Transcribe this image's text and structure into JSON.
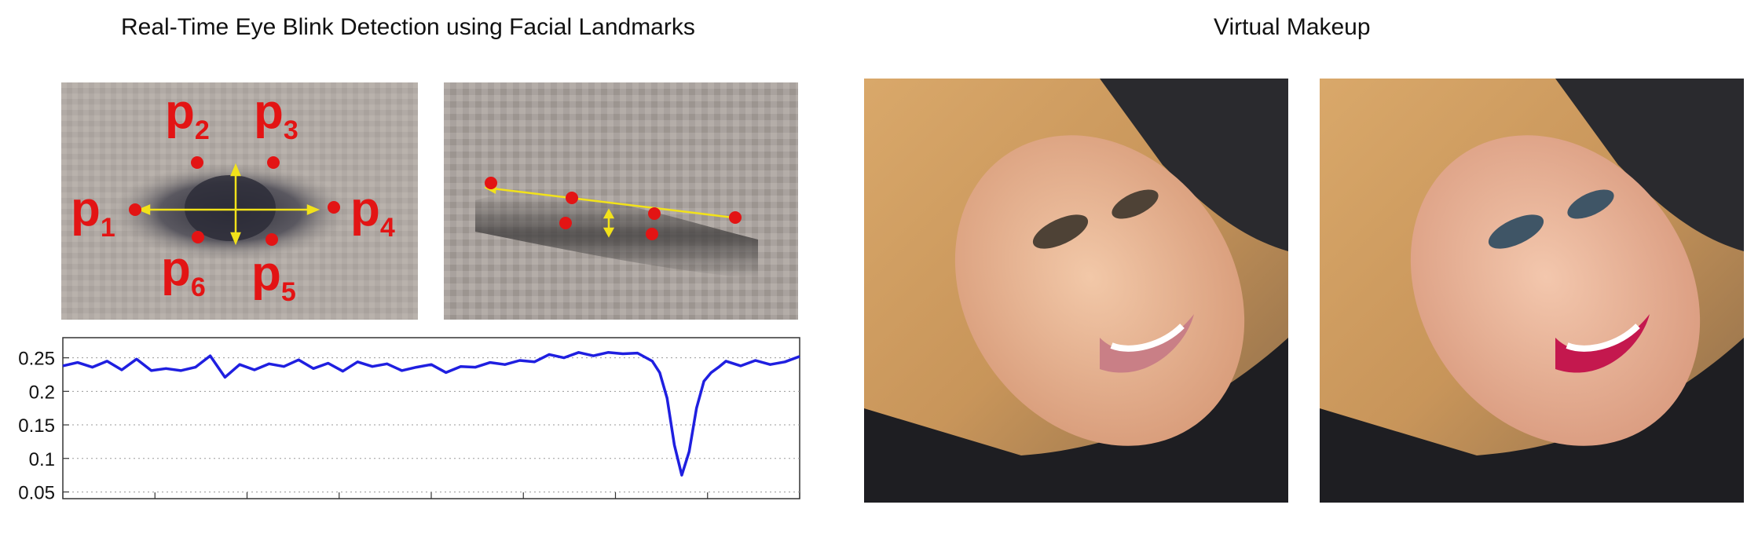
{
  "titles": {
    "left": "Real-Time Eye Blink Detection using Facial Landmarks",
    "right": "Virtual Makeup"
  },
  "landmark_labels": [
    {
      "base": "p",
      "sub": "1"
    },
    {
      "base": "p",
      "sub": "2"
    },
    {
      "base": "p",
      "sub": "3"
    },
    {
      "base": "p",
      "sub": "4"
    },
    {
      "base": "p",
      "sub": "5"
    },
    {
      "base": "p",
      "sub": "6"
    }
  ],
  "colors": {
    "landmark": "#e31414",
    "axis_arrow": "#f2e21a",
    "series": "#1f1fe0",
    "grid": "#9a9a9a"
  },
  "chart_data": {
    "type": "line",
    "title": "",
    "xlabel": "",
    "ylabel": "",
    "ylim": [
      0.04,
      0.28
    ],
    "yticks": [
      0.05,
      0.1,
      0.15,
      0.2,
      0.25
    ],
    "ytick_labels": [
      "0.05",
      "0.1",
      "0.15",
      "0.2",
      "0.25"
    ],
    "grid": "y-dotted",
    "series": [
      {
        "x": [
          0,
          4,
          8,
          12,
          16,
          20,
          24,
          28,
          32,
          36,
          40,
          44,
          48,
          52,
          56,
          60,
          64,
          68,
          72,
          76,
          80,
          84,
          88,
          92,
          96,
          100,
          104,
          108,
          112,
          116,
          120,
          124,
          128,
          132,
          136,
          140,
          144,
          148,
          152,
          156,
          160,
          162,
          164,
          166,
          168,
          170,
          172,
          174,
          176,
          178,
          180,
          184,
          188,
          192,
          196,
          200
        ],
        "y": [
          0.238,
          0.243,
          0.236,
          0.245,
          0.232,
          0.248,
          0.231,
          0.234,
          0.231,
          0.236,
          0.253,
          0.221,
          0.24,
          0.232,
          0.241,
          0.237,
          0.247,
          0.234,
          0.242,
          0.23,
          0.244,
          0.237,
          0.241,
          0.231,
          0.236,
          0.24,
          0.228,
          0.237,
          0.236,
          0.243,
          0.24,
          0.246,
          0.244,
          0.255,
          0.25,
          0.258,
          0.253,
          0.258,
          0.256,
          0.257,
          0.245,
          0.228,
          0.19,
          0.12,
          0.075,
          0.11,
          0.175,
          0.215,
          0.228,
          0.236,
          0.245,
          0.238,
          0.246,
          0.24,
          0.244,
          0.252
        ]
      }
    ]
  }
}
